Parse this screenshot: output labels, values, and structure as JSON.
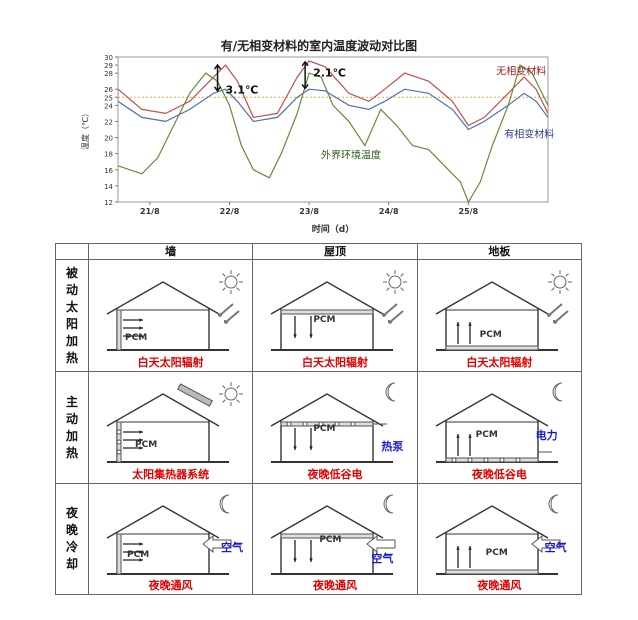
{
  "chart_data": {
    "type": "line",
    "title": "有/无相变材料的室内温度波动对比图",
    "xlabel": "时间（d）",
    "ylabel": "温度（℃）",
    "ylim": [
      12,
      30
    ],
    "y_ticks": [
      "12",
      "14",
      "16",
      "18",
      "20",
      "22",
      "24",
      "25",
      "26",
      "28",
      "29",
      "30"
    ],
    "x_ticks": [
      "21/8",
      "22/8",
      "23/8",
      "24/8",
      "25/8"
    ],
    "x_range": [
      20.6,
      26.0
    ],
    "reference_line": 25,
    "series": [
      {
        "name": "无相变材料",
        "color": "#c0504d",
        "x": [
          20.6,
          20.9,
          21.2,
          21.5,
          21.8,
          21.95,
          22.1,
          22.3,
          22.6,
          22.85,
          23.0,
          23.2,
          23.5,
          23.75,
          23.95,
          24.2,
          24.5,
          24.8,
          25.0,
          25.2,
          25.5,
          25.7,
          25.85,
          26.0
        ],
        "y": [
          26,
          23.5,
          23,
          24.5,
          27.5,
          29,
          27,
          22.5,
          23,
          27.5,
          29.5,
          28.8,
          25.5,
          24.5,
          26,
          28,
          27,
          24.5,
          21.5,
          22.5,
          25.5,
          27.5,
          26,
          23
        ]
      },
      {
        "name": "有相变材料",
        "color": "#4f6fb0",
        "x": [
          20.6,
          20.9,
          21.2,
          21.5,
          21.8,
          21.95,
          22.1,
          22.3,
          22.6,
          22.85,
          23.0,
          23.2,
          23.5,
          23.75,
          23.95,
          24.2,
          24.5,
          24.8,
          25.0,
          25.2,
          25.5,
          25.7,
          25.85,
          26.0
        ],
        "y": [
          24.5,
          22.5,
          22,
          23.5,
          25.5,
          26,
          24.5,
          22,
          22.5,
          25,
          26,
          25.8,
          24,
          23.5,
          24.5,
          26,
          25.5,
          23.5,
          21,
          22,
          24,
          25.5,
          24.5,
          22.5
        ]
      },
      {
        "name": "外界环境温度",
        "color": "#6a8a3a",
        "x": [
          20.6,
          20.75,
          20.9,
          21.1,
          21.3,
          21.5,
          21.7,
          21.85,
          22.0,
          22.15,
          22.3,
          22.5,
          22.65,
          22.85,
          23.0,
          23.15,
          23.3,
          23.5,
          23.7,
          23.9,
          24.1,
          24.3,
          24.5,
          24.7,
          24.9,
          25.0,
          25.15,
          25.3,
          25.5,
          25.65,
          25.8,
          26.0
        ],
        "y": [
          16.5,
          16,
          15.5,
          17.5,
          21.5,
          25.5,
          28,
          27,
          24,
          19,
          16,
          15,
          18,
          23,
          28,
          27.5,
          24,
          22,
          19,
          23.5,
          21.5,
          19,
          18.5,
          16.5,
          14.5,
          12,
          14.5,
          19,
          24,
          29,
          28,
          24
        ]
      }
    ],
    "annotations": [
      "3.1℃",
      "2.1℃",
      "无相变材料",
      "有相变材料",
      "外界环境温度"
    ]
  },
  "table": {
    "columns": [
      "墙",
      "屋顶",
      "地板"
    ],
    "rows": [
      {
        "label": "被动太阳加热",
        "cells": [
          {
            "pcm": "PCM",
            "caption": "白天太阳辐射",
            "side": ""
          },
          {
            "pcm": "PCM",
            "caption": "白天太阳辐射",
            "side": ""
          },
          {
            "pcm": "PCM",
            "caption": "白天太阳辐射",
            "side": ""
          }
        ]
      },
      {
        "label": "主动加热",
        "cells": [
          {
            "pcm": "PCM",
            "caption": "太阳集热器系统",
            "side": ""
          },
          {
            "pcm": "PCM",
            "caption": "夜晚低谷电",
            "side": "热泵"
          },
          {
            "pcm": "PCM",
            "caption": "夜晚低谷电",
            "side": "电力"
          }
        ]
      },
      {
        "label": "夜晚冷却",
        "cells": [
          {
            "pcm": "PCM",
            "caption": "夜晚通风",
            "side": "空气"
          },
          {
            "pcm": "PCM",
            "caption": "夜晚通风",
            "side": "空气"
          },
          {
            "pcm": "PCM",
            "caption": "夜晚通风",
            "side": "空气"
          }
        ]
      }
    ]
  }
}
